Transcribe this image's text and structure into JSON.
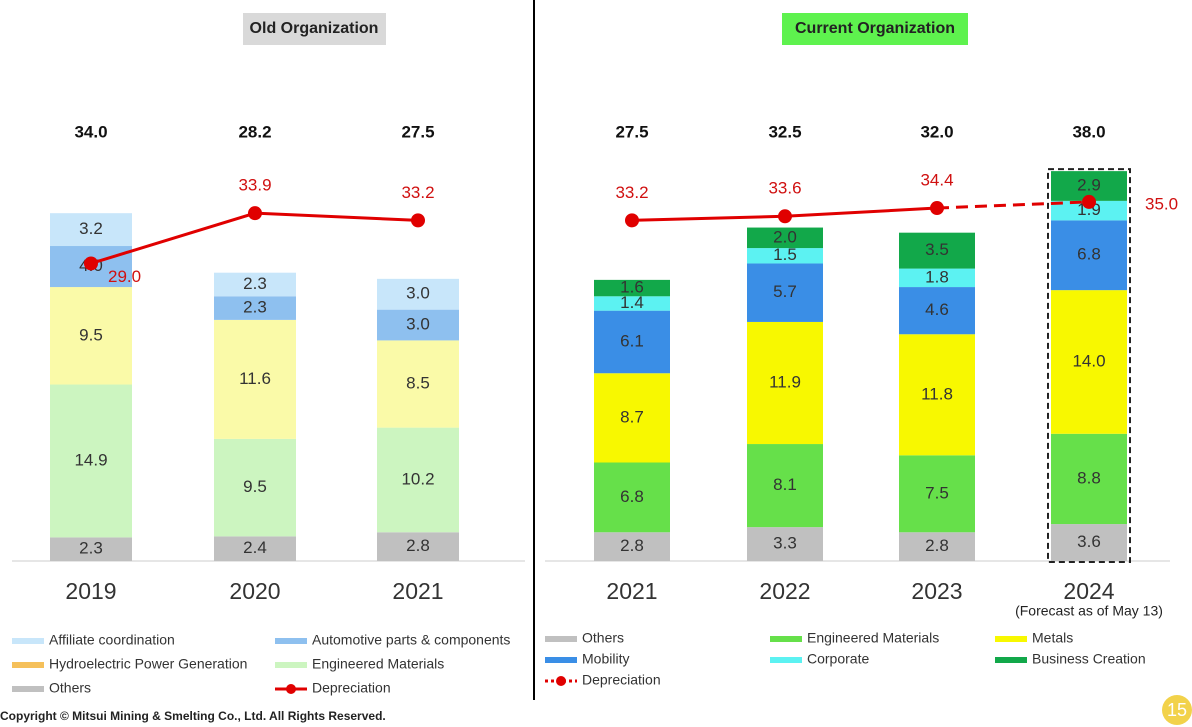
{
  "chart_data": [
    {
      "type": "stacked_bar",
      "title": "Old Organization",
      "categories": [
        "2019",
        "2020",
        "2021"
      ],
      "ylim": [
        0,
        50
      ],
      "totals": [
        34.0,
        28.2,
        27.5
      ],
      "totals_labels": [
        "34.0",
        "28.2",
        "27.5"
      ],
      "series": [
        {
          "name": "Others",
          "color": "#c0c0c0",
          "values": [
            2.3,
            2.4,
            2.8
          ],
          "value_labels": [
            "2.3",
            "2.4",
            "2.8"
          ]
        },
        {
          "name": "Engineered Materials",
          "color": "#ccf5c0",
          "values": [
            14.9,
            9.5,
            10.2
          ],
          "value_labels": [
            "14.9",
            "9.5",
            "10.2"
          ]
        },
        {
          "name": null,
          "color": "#fafaa8",
          "values": [
            9.5,
            11.6,
            8.5
          ],
          "value_labels": [
            "9.5",
            "11.6",
            "8.5"
          ]
        },
        {
          "name": "Hydroelectric Power Generation",
          "color": "#f5c05a",
          "values": [
            null,
            null,
            null
          ]
        },
        {
          "name": "Automotive parts & components",
          "color": "#8ec0ef",
          "values": [
            4.0,
            2.3,
            3.0
          ],
          "value_labels": [
            "4.0",
            "2.3",
            "3.0"
          ]
        },
        {
          "name": "Affiliate coordination",
          "color": "#c8e6fa",
          "values": [
            3.2,
            2.3,
            3.0
          ],
          "value_labels": [
            "3.2",
            "2.3",
            "3.0"
          ]
        }
      ],
      "line": {
        "name": "Depreciation",
        "color": "#e00000",
        "values": [
          29.0,
          33.9,
          33.2
        ],
        "value_labels": [
          "29.0",
          "33.9",
          "33.2"
        ]
      }
    },
    {
      "type": "stacked_bar",
      "title": "Current Organization",
      "categories": [
        "2021",
        "2022",
        "2023",
        "2024"
      ],
      "annotation": "(Forecast as of May 13)",
      "ylim": [
        0,
        50
      ],
      "totals": [
        27.5,
        32.5,
        32.0,
        38.0
      ],
      "totals_labels": [
        "27.5",
        "32.5",
        "32.0",
        "38.0"
      ],
      "series": [
        {
          "name": "Others",
          "color": "#c0c0c0",
          "values": [
            2.8,
            3.3,
            2.8,
            3.6
          ],
          "value_labels": [
            "2.8",
            "3.3",
            "2.8",
            "3.6"
          ]
        },
        {
          "name": "Engineered Materials",
          "color": "#66e04a",
          "values": [
            6.8,
            8.1,
            7.5,
            8.8
          ],
          "value_labels": [
            "6.8",
            "8.1",
            "7.5",
            "8.8"
          ]
        },
        {
          "name": "Metals",
          "color": "#f8f800",
          "values": [
            8.7,
            11.9,
            11.8,
            14.0
          ],
          "value_labels": [
            "8.7",
            "11.9",
            "11.8",
            "14.0"
          ]
        },
        {
          "name": "Mobility",
          "color": "#3a8ee6",
          "values": [
            6.1,
            5.7,
            4.6,
            6.8
          ],
          "value_labels": [
            "6.1",
            "5.7",
            "4.6",
            "6.8"
          ]
        },
        {
          "name": "Corporate",
          "color": "#5cf2f2",
          "values": [
            1.4,
            1.5,
            1.8,
            1.9
          ],
          "value_labels": [
            "1.4",
            "1.5",
            "1.8",
            "1.9"
          ]
        },
        {
          "name": "Business Creation",
          "color": "#12a84a",
          "values": [
            1.6,
            2.0,
            3.5,
            2.9
          ],
          "value_labels": [
            "1.6",
            "2.0",
            "3.5",
            "2.9"
          ]
        }
      ],
      "line": {
        "name": "Depreciation",
        "color": "#e00000",
        "dashed_last": true,
        "values": [
          33.2,
          33.6,
          34.4,
          35.0
        ],
        "value_labels": [
          "33.2",
          "33.6",
          "34.4",
          "35.0"
        ]
      }
    }
  ],
  "footer": {
    "copyright": "Copyright © Mitsui Mining & Smelting Co., Ltd. All Rights Reserved.",
    "page": "15"
  }
}
